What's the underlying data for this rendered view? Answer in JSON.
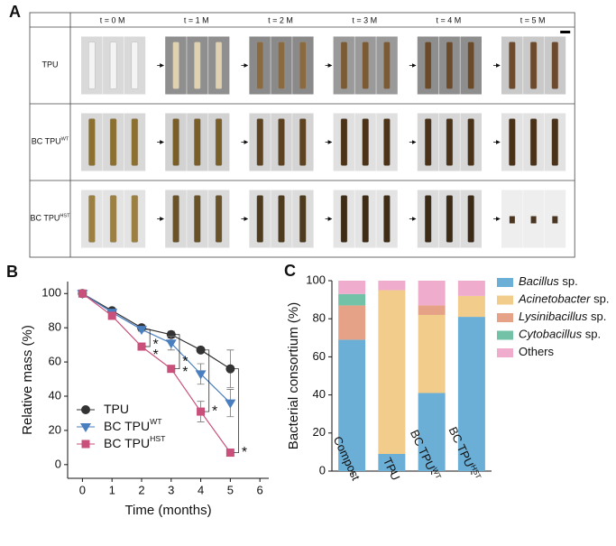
{
  "panel_a": {
    "label": "A",
    "columns": [
      "t = 0 M",
      "t = 1 M",
      "t = 2 M",
      "t = 3 M",
      "t = 4 M",
      "t = 5 M"
    ],
    "rows": [
      {
        "text": "TPU"
      },
      {
        "text": "BC TPU",
        "sup": "WT"
      },
      {
        "text": "BC TPU",
        "sup": "HST"
      }
    ]
  },
  "chart_data": [
    {
      "type": "line",
      "panel": "B",
      "xlabel": "Time (months)",
      "ylabel": "Relative mass (%)",
      "x": [
        0,
        1,
        2,
        3,
        4,
        5
      ],
      "xlim": [
        -0.5,
        6.3
      ],
      "xticks": [
        0,
        1,
        2,
        3,
        4,
        5,
        6
      ],
      "ylim": [
        -8,
        107
      ],
      "yticks": [
        0,
        20,
        40,
        60,
        80,
        100
      ],
      "series": [
        {
          "name": "TPU",
          "color": "#333333",
          "marker": "circle",
          "values": [
            100,
            90,
            80,
            76,
            67,
            56
          ],
          "errors": [
            0,
            1,
            1,
            2,
            1,
            11
          ]
        },
        {
          "name": "BC TPU",
          "sup": "WT",
          "color": "#4a7fbf",
          "marker": "triangle",
          "values": [
            100,
            89,
            79,
            71,
            53,
            36
          ],
          "errors": [
            0,
            1,
            1,
            4,
            6,
            8
          ]
        },
        {
          "name": "BC TPU",
          "sup": "HST",
          "color": "#c9507a",
          "marker": "square",
          "values": [
            100,
            87,
            69,
            56,
            31,
            7
          ],
          "errors": [
            0,
            2,
            1,
            2,
            6,
            2
          ]
        }
      ],
      "annotations": [
        "*",
        "*",
        "*",
        "*",
        "*",
        "*"
      ]
    },
    {
      "type": "stacked_bar",
      "panel": "C",
      "ylabel": "Bacterial consortium (%)",
      "categories": [
        "Compost",
        "TPU",
        "BC TPU",
        "BC TPU"
      ],
      "category_sups": [
        null,
        null,
        "WT",
        "HST"
      ],
      "ylim": [
        0,
        100
      ],
      "yticks": [
        0,
        20,
        40,
        60,
        80,
        100
      ],
      "series": [
        {
          "name": "Bacillus",
          "suffix": "sp.",
          "color": "#6baed6",
          "values": [
            69,
            9,
            41,
            81
          ]
        },
        {
          "name": "Acinetobacter",
          "suffix": "sp.",
          "color": "#f2cc8a",
          "values": [
            0,
            86,
            41,
            11
          ]
        },
        {
          "name": "Lysinibacillus",
          "suffix": "sp.",
          "color": "#e6a286",
          "values": [
            18,
            0,
            5,
            0
          ]
        },
        {
          "name": "Cytobacillus",
          "suffix": "sp.",
          "color": "#72c2a8",
          "values": [
            6,
            0,
            0,
            0
          ]
        },
        {
          "name": "Others",
          "color": "#efaccd",
          "values": [
            7,
            5,
            13,
            8
          ]
        }
      ]
    }
  ]
}
